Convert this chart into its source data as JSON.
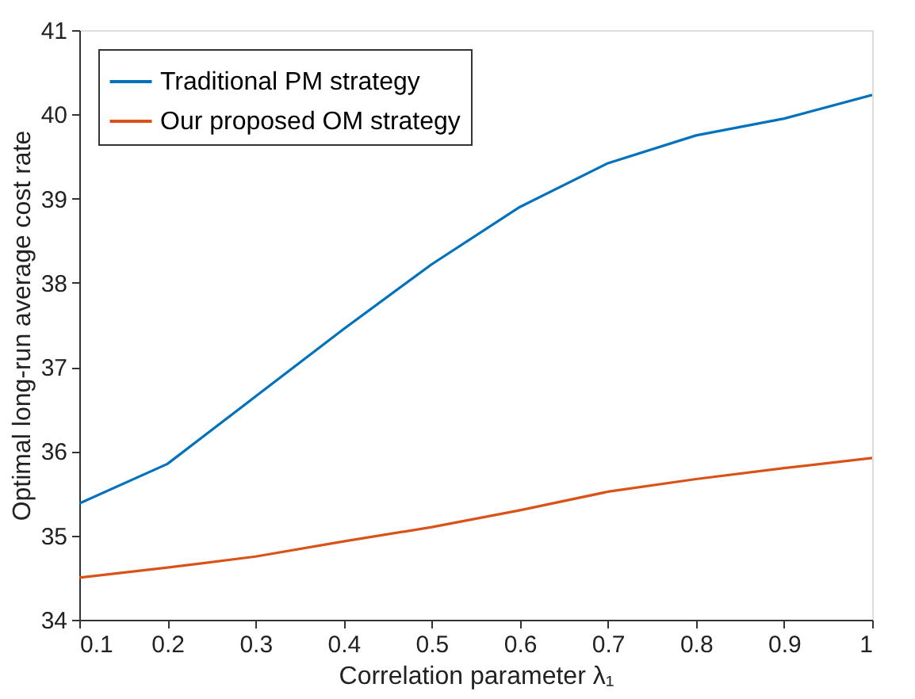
{
  "chart_data": {
    "type": "line",
    "xlabel": "Correlation parameter λ₁",
    "ylabel": "Optimal long-run average cost rate",
    "x": [
      0.1,
      0.2,
      0.3,
      0.4,
      0.5,
      0.6,
      0.7,
      0.8,
      0.9,
      1
    ],
    "series": [
      {
        "name": "Traditional PM strategy",
        "color": "#0072bd",
        "values": [
          35.38,
          35.85,
          36.65,
          37.45,
          38.22,
          38.9,
          39.42,
          39.75,
          39.95,
          40.23
        ]
      },
      {
        "name": "Our proposed OM strategy",
        "color": "#d95319",
        "values": [
          34.5,
          34.62,
          34.75,
          34.93,
          35.1,
          35.3,
          35.52,
          35.67,
          35.8,
          35.92
        ]
      }
    ],
    "xlim": [
      0.1,
      1
    ],
    "xticks": [
      0.1,
      0.2,
      0.3,
      0.4,
      0.5,
      0.6,
      0.7,
      0.8,
      0.9,
      1
    ],
    "ylim": [
      34,
      41
    ],
    "yticks": [
      34,
      35,
      36,
      37,
      38,
      39,
      40,
      41
    ],
    "grid": false,
    "legend": "top left",
    "marker": "none",
    "line_style": "solid"
  }
}
